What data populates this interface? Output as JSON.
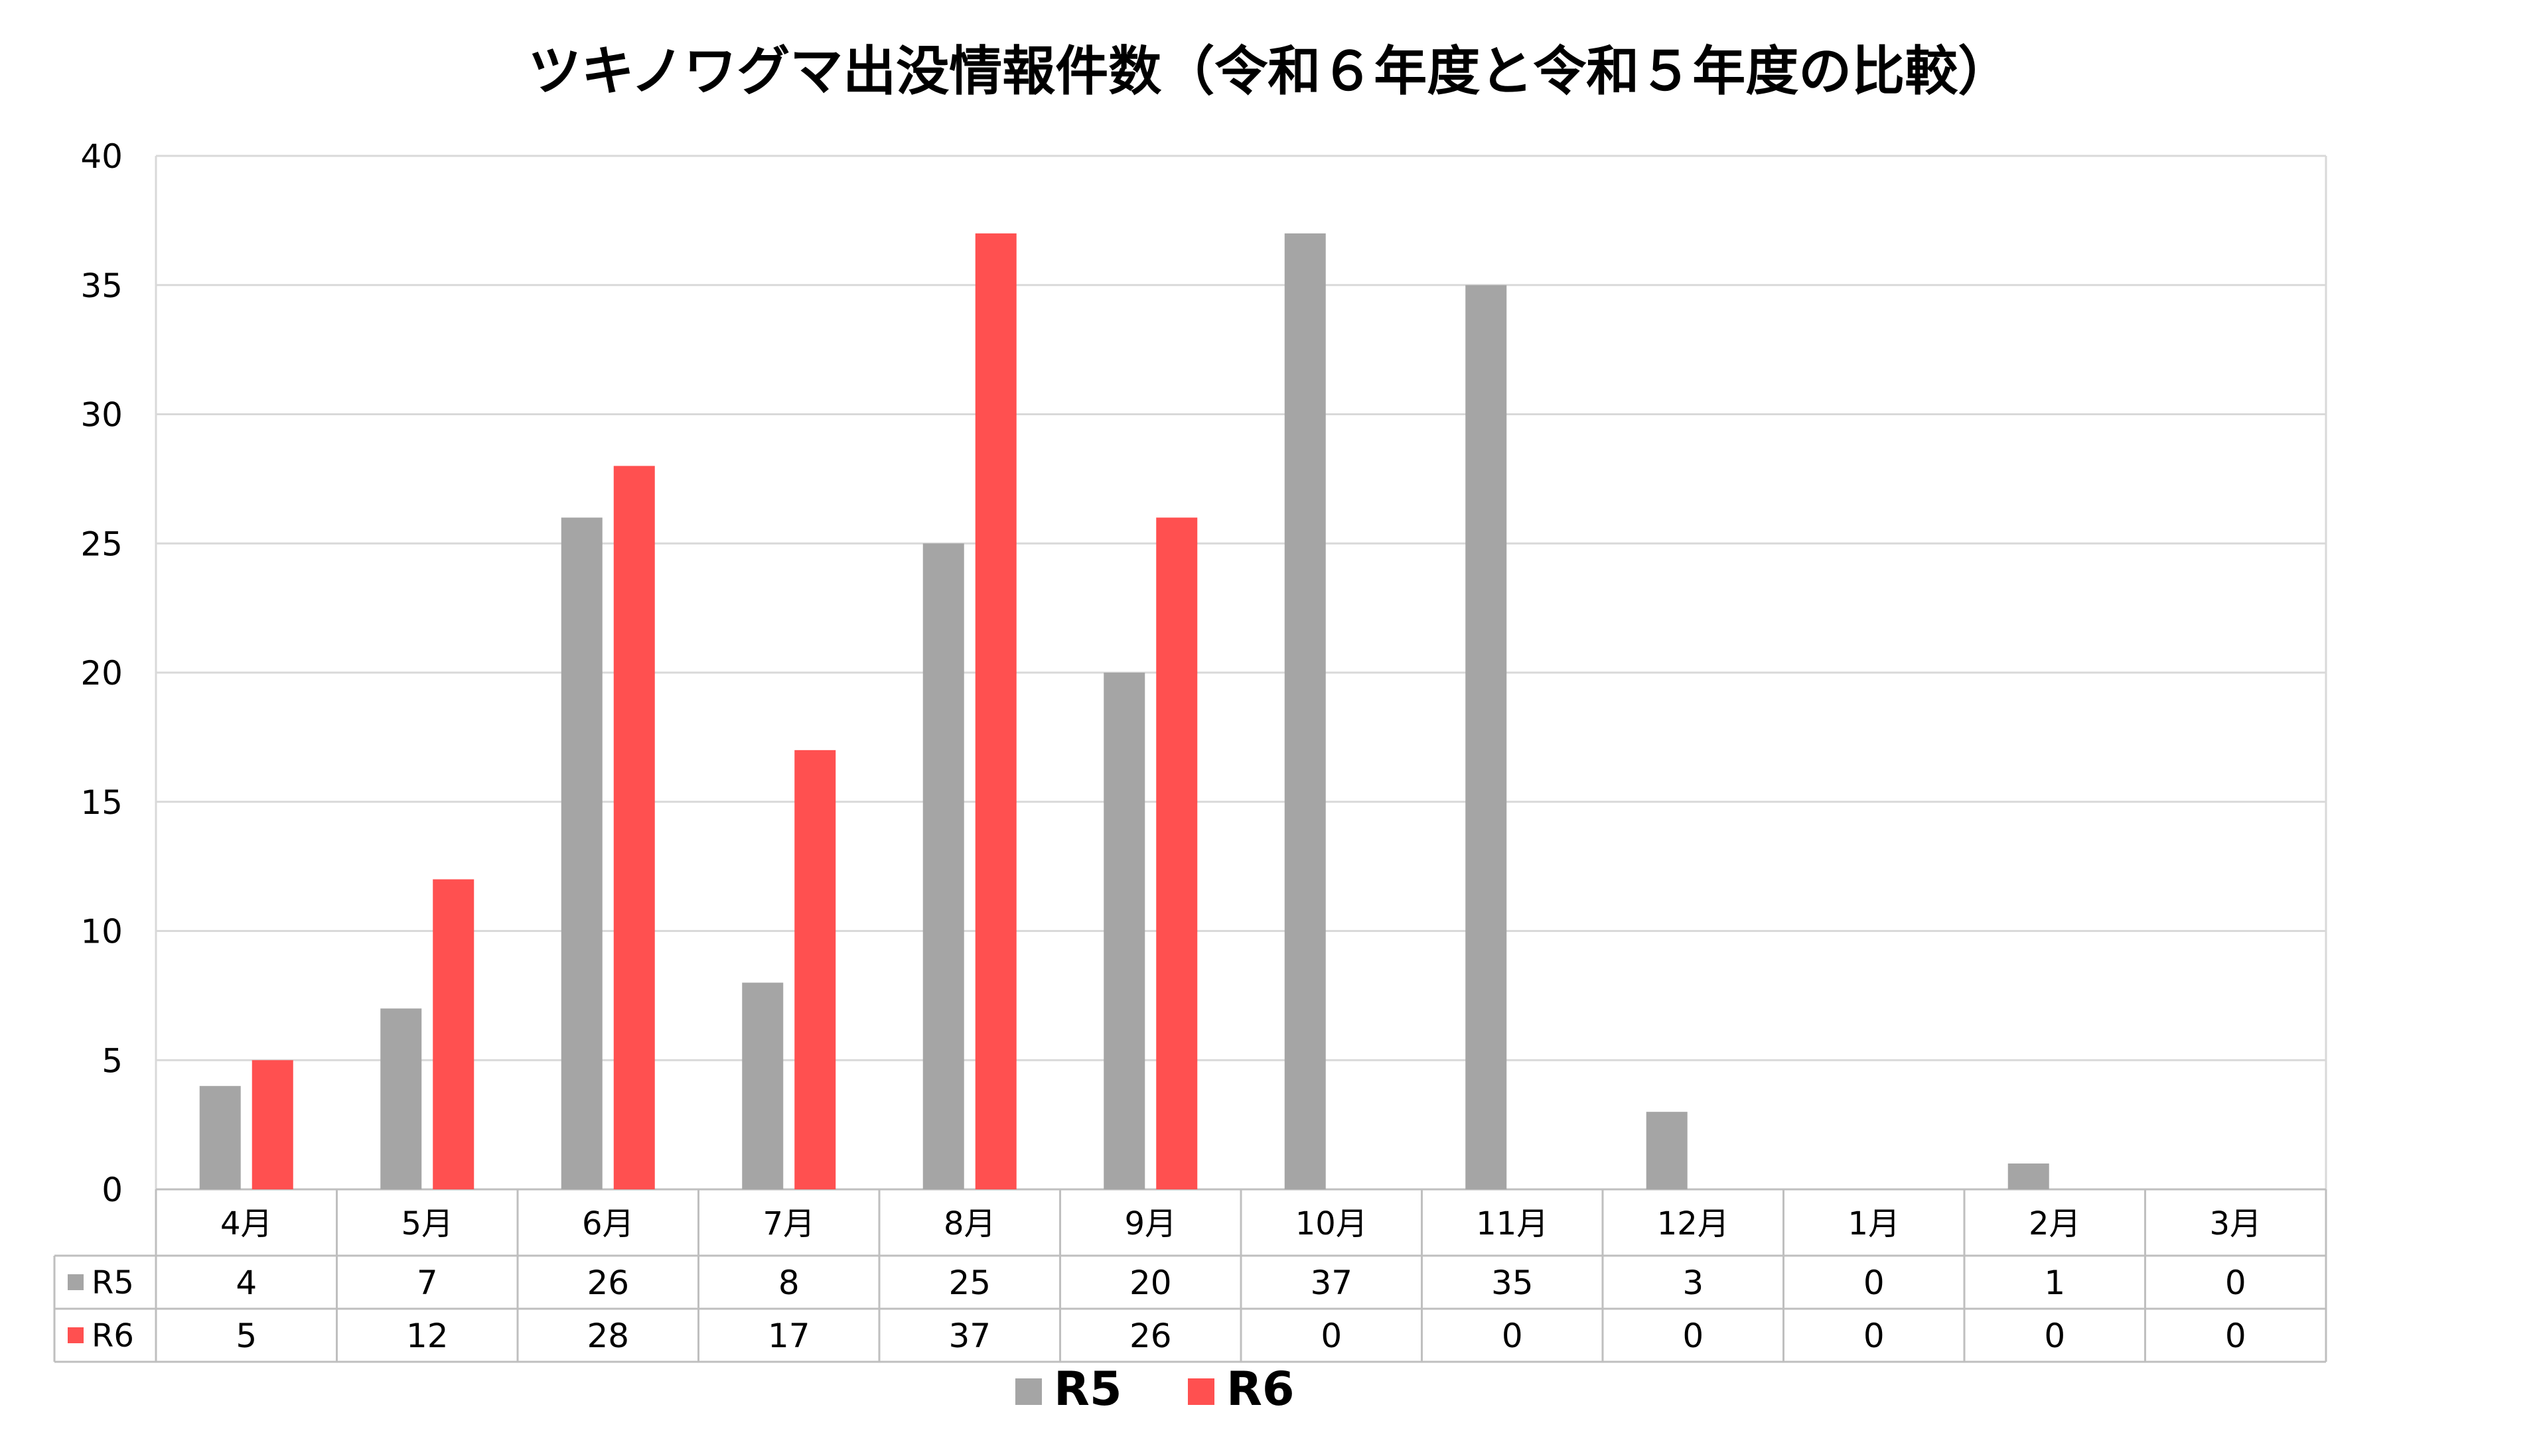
{
  "chart_data": {
    "type": "bar",
    "title": "ツキノワグマ出没情報件数（令和６年度と令和５年度の比較）",
    "categories": [
      "4月",
      "5月",
      "6月",
      "7月",
      "8月",
      "9月",
      "10月",
      "11月",
      "12月",
      "1月",
      "2月",
      "3月"
    ],
    "series": [
      {
        "name": "R5",
        "color": "#a5a5a5",
        "values": [
          4,
          7,
          26,
          8,
          25,
          20,
          37,
          35,
          3,
          0,
          1,
          0
        ]
      },
      {
        "name": "R6",
        "color": "#ff5050",
        "values": [
          5,
          12,
          28,
          17,
          37,
          26,
          0,
          0,
          0,
          0,
          0,
          0
        ]
      }
    ],
    "ylim": [
      0,
      40
    ],
    "yticks": [
      0,
      5,
      10,
      15,
      20,
      25,
      30,
      35,
      40
    ],
    "grid": true,
    "legend": "bottom",
    "data_table": true
  }
}
